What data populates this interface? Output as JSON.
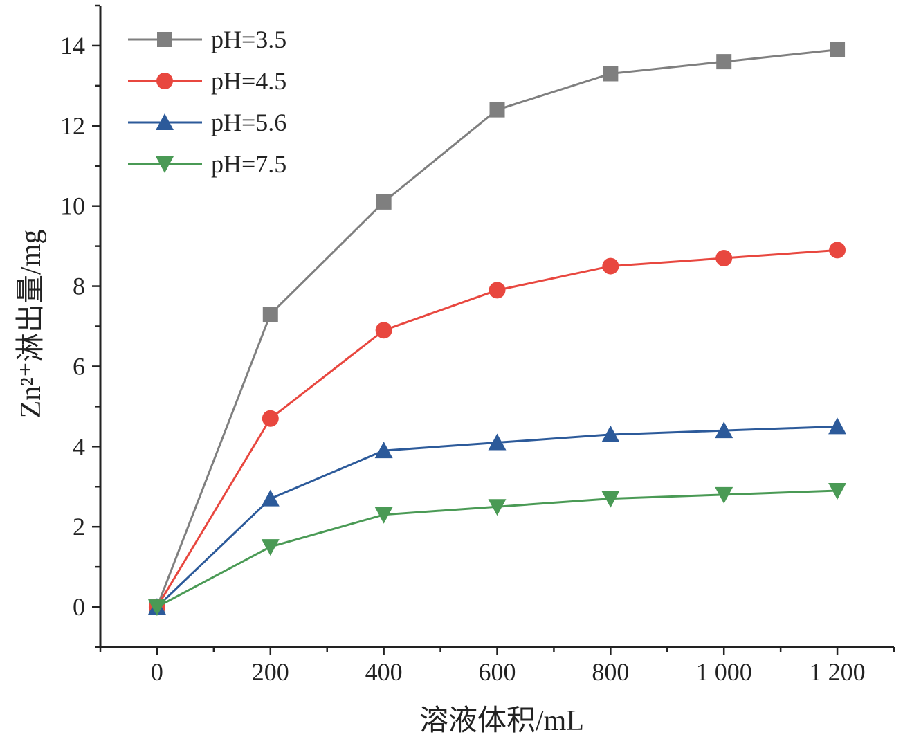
{
  "chart_data": {
    "type": "line",
    "title": "",
    "xlabel": "溶液体积/mL",
    "ylabel": "Zn²⁺淋出量/mg",
    "x": [
      0,
      200,
      400,
      600,
      800,
      1000,
      1200
    ],
    "xtick_labels": [
      "0",
      "200",
      "400",
      "600",
      "800",
      "1 000",
      "1 200"
    ],
    "ytick_labels": [
      "0",
      "2",
      "4",
      "6",
      "8",
      "10",
      "12",
      "14"
    ],
    "xlim": [
      -100,
      1300
    ],
    "ylim": [
      -1,
      15
    ],
    "grid": false,
    "legend_position": "top-left",
    "series": [
      {
        "name": "pH=3.5",
        "color": "#7f7f7f",
        "marker": "square",
        "values": [
          0,
          7.3,
          10.1,
          12.4,
          13.3,
          13.6,
          13.9
        ]
      },
      {
        "name": "pH=4.5",
        "color": "#e8473f",
        "marker": "circle",
        "values": [
          0,
          4.7,
          6.9,
          7.9,
          8.5,
          8.7,
          8.9
        ]
      },
      {
        "name": "pH=5.6",
        "color": "#2c5a9a",
        "marker": "triangle-up",
        "values": [
          0,
          2.7,
          3.9,
          4.1,
          4.3,
          4.4,
          4.5
        ]
      },
      {
        "name": "pH=7.5",
        "color": "#4a9a55",
        "marker": "triangle-down",
        "values": [
          0,
          1.5,
          2.3,
          2.5,
          2.7,
          2.8,
          2.9
        ]
      }
    ]
  }
}
